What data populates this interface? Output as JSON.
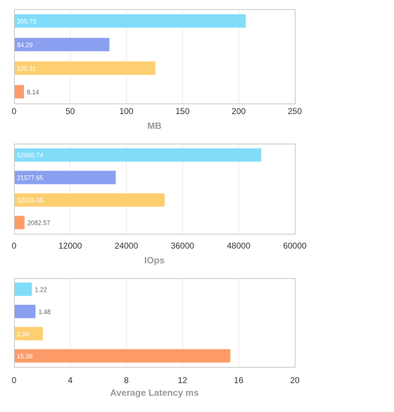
{
  "colors": [
    "#80dcf9",
    "#8a9ff0",
    "#fecf70",
    "#fd9b68"
  ],
  "chart_data": [
    {
      "type": "bar",
      "orientation": "horizontal",
      "title": "",
      "xlabel": "MB",
      "ylabel": "",
      "xlim": [
        0,
        250
      ],
      "ticks": [
        "0",
        "50",
        "100",
        "150",
        "200",
        "250"
      ],
      "grid": true,
      "values": [
        205.73,
        84.29,
        125.11,
        8.14
      ],
      "labels": [
        "205.73",
        "84.29",
        "125.11",
        "8.14"
      ]
    },
    {
      "type": "bar",
      "orientation": "horizontal",
      "title": "",
      "xlabel": "IOps",
      "ylabel": "",
      "xlim": [
        0,
        60000
      ],
      "ticks": [
        "0",
        "12000",
        "24000",
        "36000",
        "48000",
        "60000"
      ],
      "grid": true,
      "values": [
        52666.74,
        21577.65,
        32026.45,
        2082.57
      ],
      "labels": [
        "52666.74",
        "21577.65",
        "32026.45",
        "2082.57"
      ]
    },
    {
      "type": "bar",
      "orientation": "horizontal",
      "title": "",
      "xlabel": "Average Latency ms",
      "ylabel": "",
      "xlim": [
        0,
        20
      ],
      "ticks": [
        "0",
        "4",
        "8",
        "12",
        "16",
        "20"
      ],
      "grid": true,
      "values": [
        1.22,
        1.48,
        2.0,
        15.36
      ],
      "labels": [
        "1.22",
        "1.48",
        "2.00",
        "15.36"
      ]
    }
  ]
}
